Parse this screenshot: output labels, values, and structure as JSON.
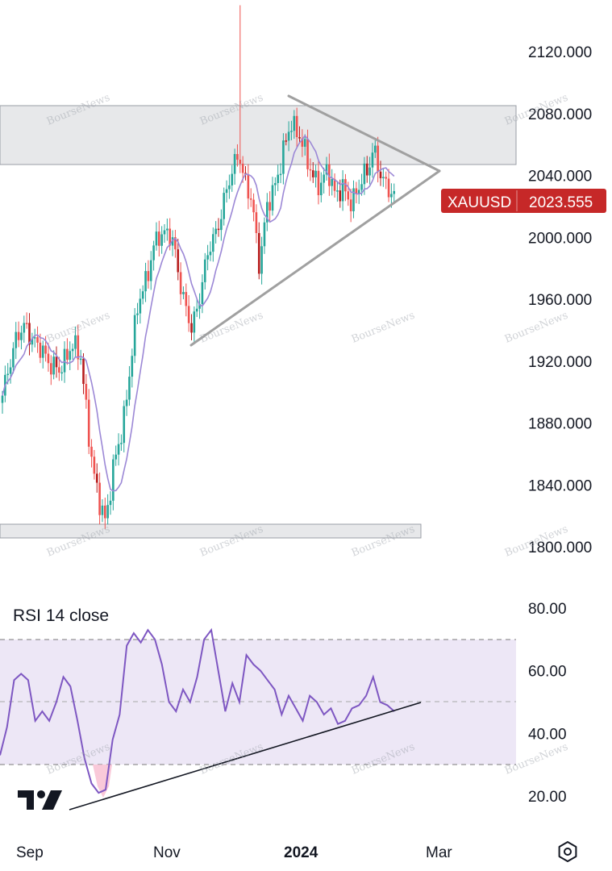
{
  "symbol": "XAUUSD",
  "last_price": "2023.555",
  "rsi_title": "RSI 14 close",
  "watermark_text": "BourseNews",
  "logo_text": "TV",
  "settings_icon": "gear-hexagon-icon",
  "colors": {
    "up": "#26a69a",
    "down": "#ef5350",
    "down_dark": "#b71c1c",
    "ma": "#9c88d6",
    "rsi_line": "#7e57c2",
    "rsi_band": "#ede7f6",
    "zone": "#e7e8ea",
    "trendline": "#9e9e9e",
    "badge": "#c62828"
  },
  "chart_data": [
    {
      "type": "candlestick",
      "title": "",
      "series_name": "XAUUSD",
      "y_ticks": [
        "2120.000",
        "2080.000",
        "2040.000",
        "2000.000",
        "1960.000",
        "1920.000",
        "1880.000",
        "1840.000",
        "1800.000"
      ],
      "y_tick_values": [
        2120,
        2080,
        2040,
        2000,
        1960,
        1920,
        1880,
        1840,
        1800
      ],
      "x_labels": [
        "Sep",
        "Nov",
        "2024",
        "Mar"
      ],
      "ylim": [
        1787,
        2150
      ],
      "last_price": 2023.555,
      "resistance_zone": [
        2047,
        2087
      ],
      "support_zone": [
        1806,
        1816
      ],
      "triangle_upper": [
        [
          "2023-12-27",
          2092
        ],
        [
          "2024-02-25",
          2044
        ]
      ],
      "triangle_lower": [
        [
          "2023-10-05",
          1930
        ],
        [
          "2024-02-25",
          2044
        ]
      ],
      "candles_sample": [
        {
          "date": "2023-08-21",
          "o": 1889,
          "c": 1897
        },
        {
          "date": "2023-09-01",
          "o": 1940,
          "c": 1945
        },
        {
          "date": "2023-09-12",
          "o": 1922,
          "c": 1912
        },
        {
          "date": "2023-09-22",
          "o": 1930,
          "c": 1925
        },
        {
          "date": "2023-10-05",
          "o": 1821,
          "c": 1818
        },
        {
          "date": "2023-10-16",
          "o": 1920,
          "c": 1930
        },
        {
          "date": "2023-10-30",
          "o": 1995,
          "c": 2005
        },
        {
          "date": "2023-11-13",
          "o": 1940,
          "c": 1945
        },
        {
          "date": "2023-11-28",
          "o": 2030,
          "c": 2040
        },
        {
          "date": "2023-12-04",
          "o": 2072,
          "c": 2032
        },
        {
          "date": "2023-12-13",
          "o": 1980,
          "c": 2030
        },
        {
          "date": "2023-12-27",
          "o": 2070,
          "c": 2078
        },
        {
          "date": "2024-01-05",
          "o": 2045,
          "c": 2042
        },
        {
          "date": "2024-01-17",
          "o": 2008,
          "c": 2025
        },
        {
          "date": "2024-02-01",
          "o": 2050,
          "c": 2062
        },
        {
          "date": "2024-02-16",
          "o": 2027,
          "c": 2023.555
        }
      ]
    },
    {
      "type": "line",
      "title": "RSI 14 close",
      "series_name": "RSI",
      "y_ticks": [
        "80.00",
        "60.00",
        "40.00",
        "20.00"
      ],
      "y_tick_values": [
        80,
        60,
        40,
        20
      ],
      "ylim": [
        16,
        84
      ],
      "band": [
        30,
        70
      ],
      "midline": 50,
      "x_labels": [
        "Sep",
        "Nov",
        "2024",
        "Mar"
      ],
      "values": [
        33,
        42,
        57,
        59,
        57,
        44,
        47,
        44,
        50,
        58,
        55,
        44,
        32,
        24,
        21,
        22,
        38,
        46,
        68,
        72,
        69,
        73,
        70,
        62,
        50,
        47,
        54,
        50,
        58,
        70,
        73,
        60,
        47,
        56,
        50,
        65,
        62,
        60,
        57,
        54,
        46,
        52,
        48,
        44,
        52,
        50,
        46,
        48,
        43,
        44,
        48,
        49,
        52,
        58,
        50,
        49,
        47
      ],
      "trendline": [
        [
          4,
          18
        ],
        [
          69,
          51
        ]
      ]
    }
  ]
}
